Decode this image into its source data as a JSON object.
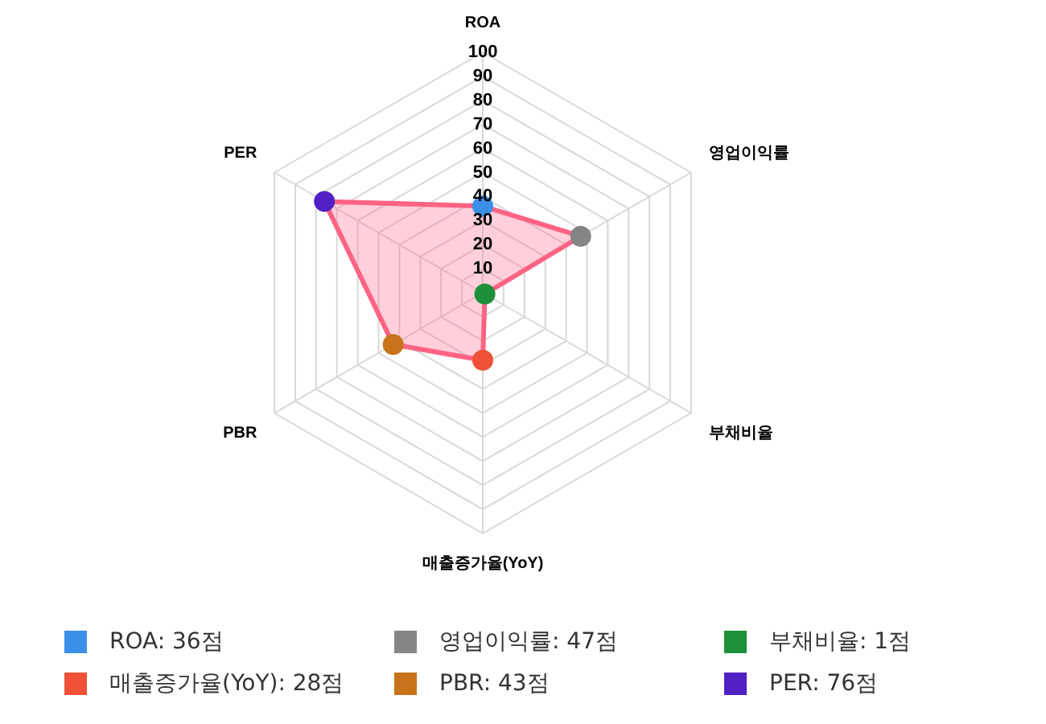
{
  "chart_data": {
    "type": "radar",
    "categories": [
      "ROA",
      "영업이익률",
      "부채비율",
      "매출증가율(YoY)",
      "PBR",
      "PER"
    ],
    "series": [
      {
        "color": "#ff6384",
        "values": [
          36,
          47,
          1,
          28,
          43,
          76
        ],
        "colors": [
          "#3b8fe8",
          "#858585",
          "#1e8f3a",
          "#ef5237",
          "#c8731c",
          "#5120c4"
        ]
      }
    ],
    "ylim": [
      0,
      100
    ],
    "yticks": [
      10,
      20,
      30,
      40,
      50,
      60,
      70,
      80,
      90,
      100
    ],
    "grid": true,
    "marker": "circle",
    "annotations": [
      "ROA: 36점",
      "영업이익률: 47점",
      "부채비율: 1점",
      "매출증가율(YoY): 28점",
      "PBR: 43점",
      "PER: 76점"
    ]
  }
}
